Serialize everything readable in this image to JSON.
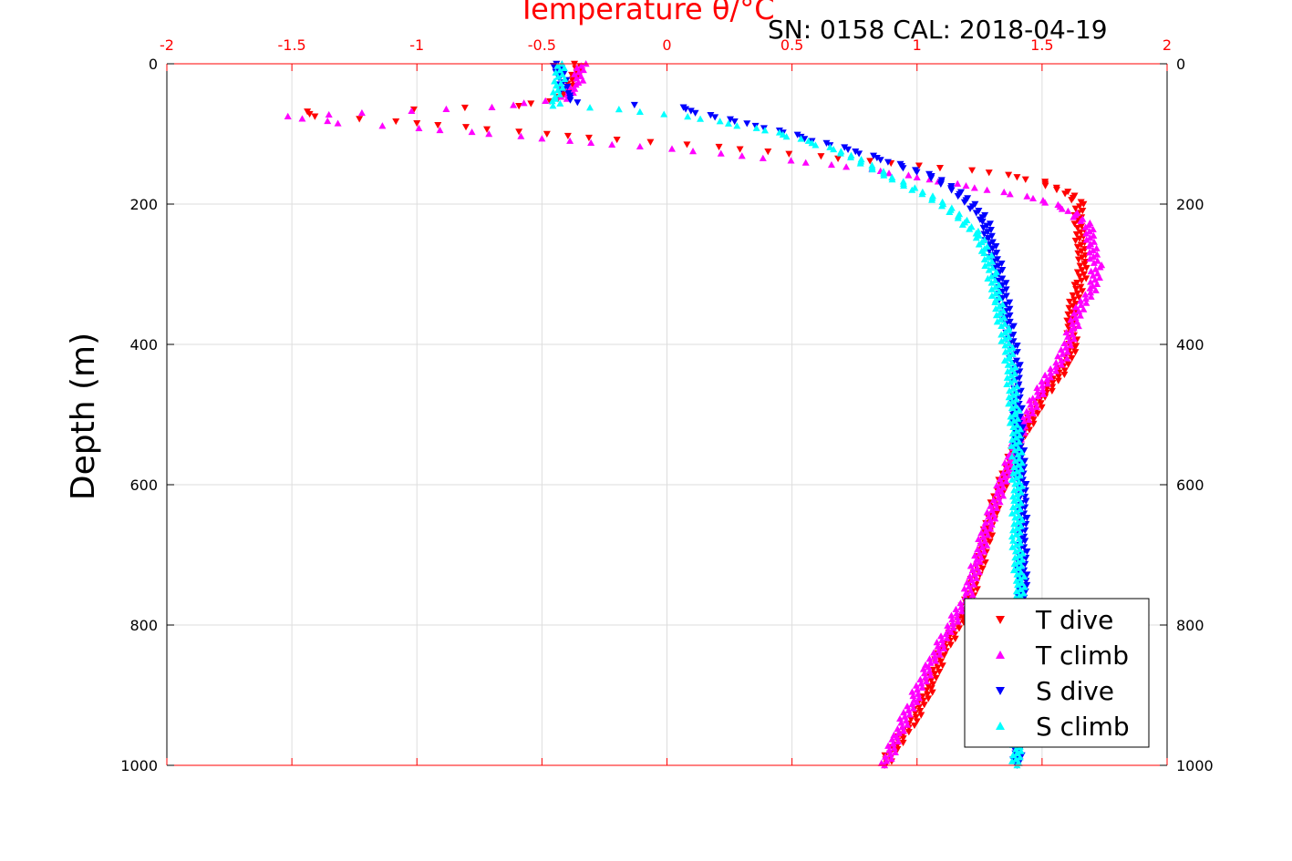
{
  "chart_data": {
    "type": "scatter",
    "title": "Temperature θ/°C",
    "subtitle": "SN: 0158  CAL: 2018-04-19",
    "xlabel": "Temperature θ/°C",
    "ylabel": "Depth (m)",
    "xlim": [
      -2,
      2
    ],
    "ylim": [
      0,
      1000
    ],
    "y_reversed": true,
    "x_axis_position": "top",
    "x_ticks": [
      "-2",
      "-1.5",
      "-1",
      "-0.5",
      "0",
      "0.5",
      "1",
      "1.5",
      "2"
    ],
    "y_ticks_left": [
      "0",
      "200",
      "400",
      "600",
      "800",
      "1000"
    ],
    "y_ticks_right": [
      "0",
      "200",
      "400",
      "600",
      "800",
      "1000"
    ],
    "grid": true,
    "legend_position": "bottom-right",
    "colors": {
      "axis_top": "#ff0000",
      "grid": "#dddddd",
      "axes": "#000000"
    },
    "series": [
      {
        "name": "T dive",
        "marker": "triangle-down",
        "color": "#ff0000",
        "points": [
          [
            -0.35,
            0
          ],
          [
            -0.38,
            25
          ],
          [
            -0.42,
            50
          ],
          [
            -0.6,
            60
          ],
          [
            -1.0,
            65
          ],
          [
            -1.45,
            68
          ],
          [
            -1.4,
            75
          ],
          [
            -1.1,
            82
          ],
          [
            -0.8,
            90
          ],
          [
            -0.5,
            100
          ],
          [
            -0.2,
            108
          ],
          [
            0.1,
            115
          ],
          [
            0.4,
            125
          ],
          [
            0.7,
            135
          ],
          [
            1.0,
            145
          ],
          [
            1.3,
            155
          ],
          [
            1.5,
            168
          ],
          [
            1.6,
            185
          ],
          [
            1.65,
            200
          ],
          [
            1.65,
            225
          ],
          [
            1.65,
            255
          ],
          [
            1.67,
            285
          ],
          [
            1.65,
            315
          ],
          [
            1.62,
            345
          ],
          [
            1.62,
            375
          ],
          [
            1.62,
            405
          ],
          [
            1.58,
            440
          ],
          [
            1.5,
            475
          ],
          [
            1.45,
            510
          ],
          [
            1.4,
            545
          ],
          [
            1.35,
            590
          ],
          [
            1.3,
            640
          ],
          [
            1.27,
            690
          ],
          [
            1.23,
            740
          ],
          [
            1.18,
            790
          ],
          [
            1.1,
            840
          ],
          [
            1.05,
            890
          ],
          [
            0.98,
            940
          ],
          [
            0.9,
            980
          ],
          [
            0.87,
            1000
          ]
        ]
      },
      {
        "name": "T climb",
        "marker": "triangle-up",
        "color": "#ff00ff",
        "points": [
          [
            -0.34,
            0
          ],
          [
            -0.36,
            30
          ],
          [
            -0.42,
            50
          ],
          [
            -0.7,
            62
          ],
          [
            -1.2,
            70
          ],
          [
            -1.52,
            75
          ],
          [
            -1.3,
            85
          ],
          [
            -1.0,
            92
          ],
          [
            -0.7,
            100
          ],
          [
            -0.4,
            110
          ],
          [
            -0.1,
            118
          ],
          [
            0.2,
            128
          ],
          [
            0.5,
            138
          ],
          [
            0.8,
            150
          ],
          [
            1.05,
            165
          ],
          [
            1.3,
            180
          ],
          [
            1.5,
            195
          ],
          [
            1.62,
            210
          ],
          [
            1.68,
            230
          ],
          [
            1.7,
            260
          ],
          [
            1.72,
            290
          ],
          [
            1.7,
            320
          ],
          [
            1.65,
            350
          ],
          [
            1.62,
            380
          ],
          [
            1.58,
            420
          ],
          [
            1.52,
            450
          ],
          [
            1.47,
            480
          ],
          [
            1.42,
            520
          ],
          [
            1.38,
            560
          ],
          [
            1.33,
            610
          ],
          [
            1.28,
            660
          ],
          [
            1.24,
            710
          ],
          [
            1.2,
            760
          ],
          [
            1.12,
            810
          ],
          [
            1.05,
            860
          ],
          [
            0.98,
            910
          ],
          [
            0.92,
            960
          ],
          [
            0.87,
            1000
          ]
        ]
      },
      {
        "name": "S dive",
        "marker": "triangle-down",
        "color": "#0000ff",
        "points": [
          [
            -0.45,
            0
          ],
          [
            -0.42,
            20
          ],
          [
            -0.4,
            45
          ],
          [
            -0.35,
            55
          ],
          [
            0.05,
            62
          ],
          [
            0.1,
            67
          ],
          [
            0.3,
            85
          ],
          [
            0.45,
            95
          ],
          [
            0.6,
            110
          ],
          [
            0.75,
            125
          ],
          [
            0.9,
            140
          ],
          [
            1.05,
            160
          ],
          [
            1.15,
            180
          ],
          [
            1.22,
            200
          ],
          [
            1.27,
            225
          ],
          [
            1.3,
            260
          ],
          [
            1.33,
            300
          ],
          [
            1.35,
            340
          ],
          [
            1.37,
            380
          ],
          [
            1.39,
            420
          ],
          [
            1.4,
            460
          ],
          [
            1.4,
            500
          ],
          [
            1.41,
            560
          ],
          [
            1.42,
            620
          ],
          [
            1.42,
            680
          ],
          [
            1.42,
            740
          ],
          [
            1.41,
            800
          ],
          [
            1.41,
            860
          ],
          [
            1.41,
            920
          ],
          [
            1.41,
            980
          ],
          [
            1.4,
            1000
          ]
        ]
      },
      {
        "name": "S climb",
        "marker": "triangle-up",
        "color": "#00ffff",
        "points": [
          [
            -0.42,
            0
          ],
          [
            -0.43,
            25
          ],
          [
            -0.45,
            50
          ],
          [
            -0.44,
            60
          ],
          [
            -0.2,
            65
          ],
          [
            0.0,
            72
          ],
          [
            0.2,
            82
          ],
          [
            0.4,
            95
          ],
          [
            0.55,
            110
          ],
          [
            0.7,
            125
          ],
          [
            0.8,
            145
          ],
          [
            0.9,
            162
          ],
          [
            1.0,
            180
          ],
          [
            1.1,
            200
          ],
          [
            1.18,
            220
          ],
          [
            1.24,
            245
          ],
          [
            1.28,
            270
          ],
          [
            1.3,
            300
          ],
          [
            1.32,
            340
          ],
          [
            1.35,
            380
          ],
          [
            1.37,
            420
          ],
          [
            1.38,
            460
          ],
          [
            1.39,
            500
          ],
          [
            1.4,
            560
          ],
          [
            1.4,
            620
          ],
          [
            1.4,
            680
          ],
          [
            1.41,
            740
          ],
          [
            1.41,
            800
          ],
          [
            1.4,
            860
          ],
          [
            1.4,
            920
          ],
          [
            1.4,
            980
          ],
          [
            1.4,
            1000
          ]
        ]
      }
    ]
  }
}
